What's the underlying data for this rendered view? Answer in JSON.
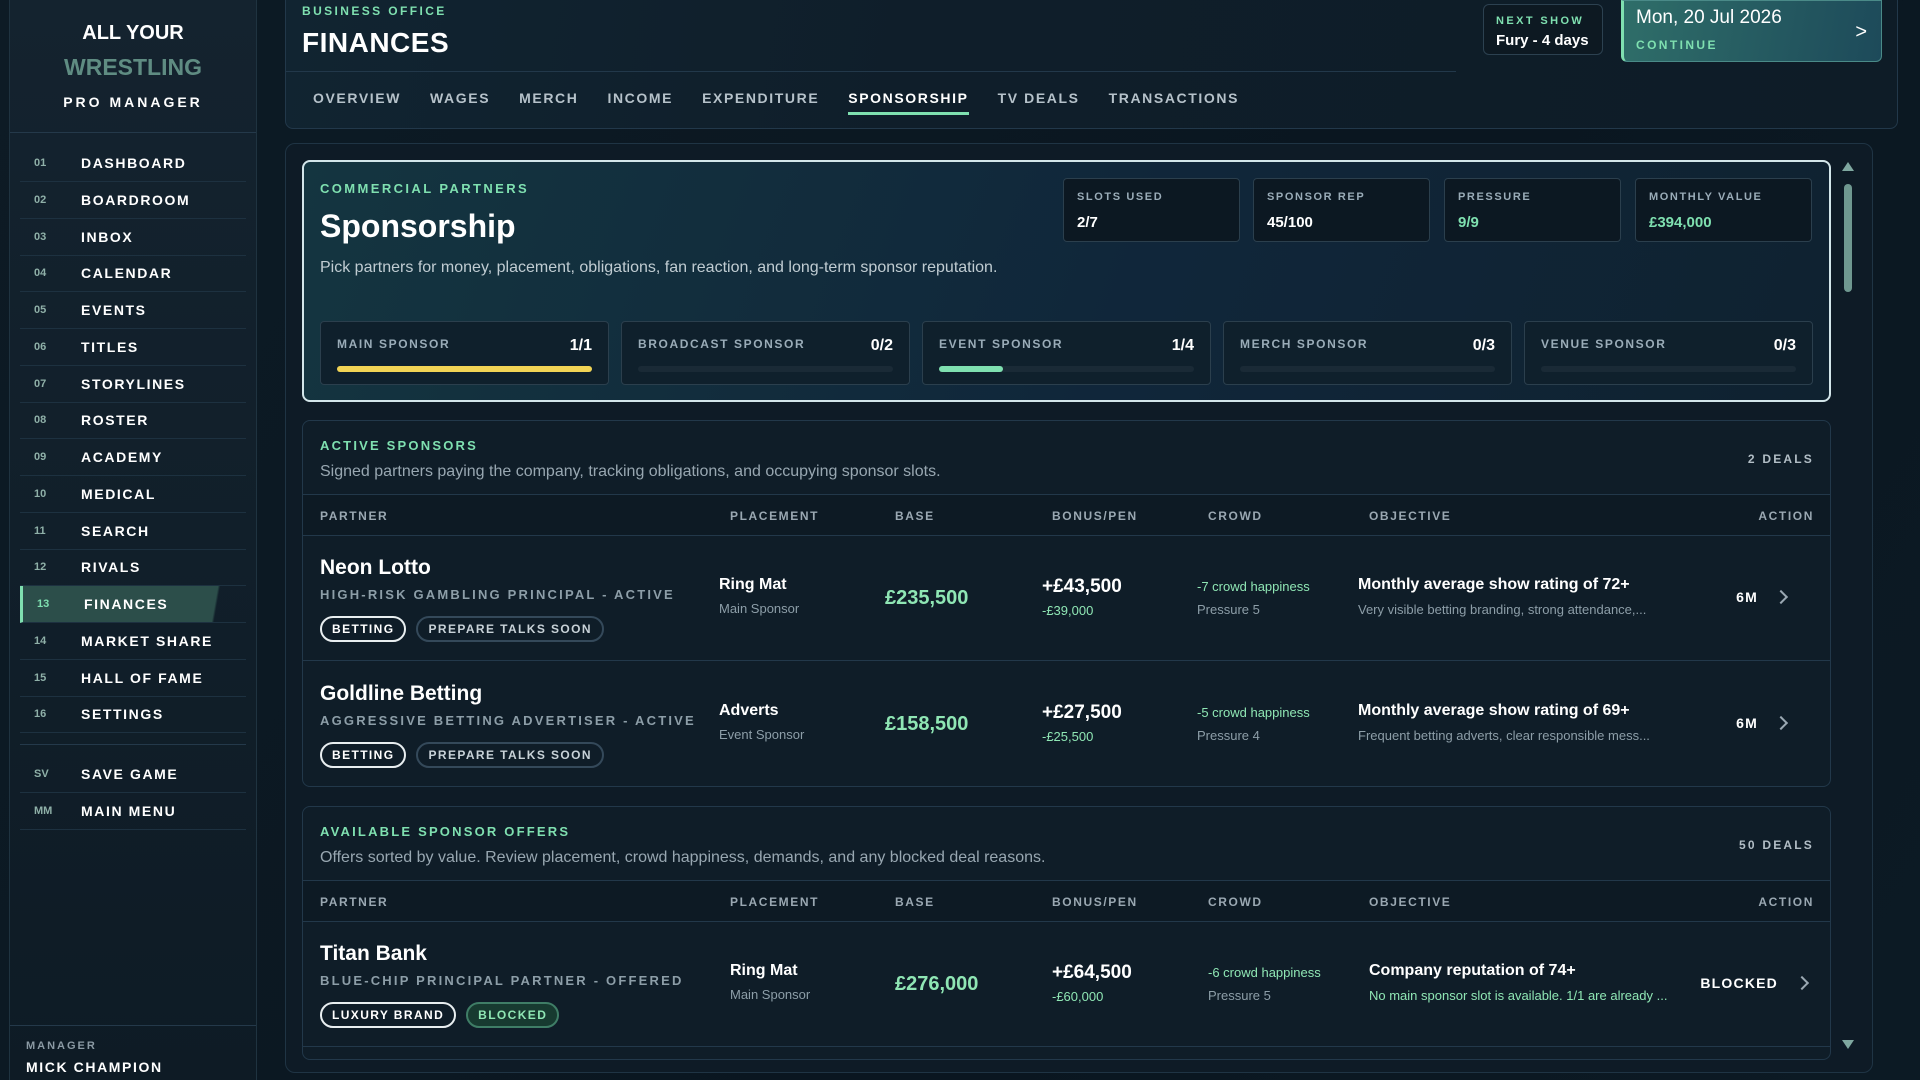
{
  "sidebar": {
    "logo": {
      "line1": "ALL YOUR",
      "line2": "WRESTLING",
      "line3": "PRO MANAGER"
    },
    "nav": [
      {
        "key": "01",
        "label": "DASHBOARD"
      },
      {
        "key": "02",
        "label": "BOARDROOM"
      },
      {
        "key": "03",
        "label": "INBOX"
      },
      {
        "key": "04",
        "label": "CALENDAR"
      },
      {
        "key": "05",
        "label": "EVENTS"
      },
      {
        "key": "06",
        "label": "TITLES"
      },
      {
        "key": "07",
        "label": "STORYLINES"
      },
      {
        "key": "08",
        "label": "ROSTER"
      },
      {
        "key": "09",
        "label": "ACADEMY"
      },
      {
        "key": "10",
        "label": "MEDICAL"
      },
      {
        "key": "11",
        "label": "SEARCH"
      },
      {
        "key": "12",
        "label": "RIVALS"
      },
      {
        "key": "13",
        "label": "FINANCES",
        "active": true
      },
      {
        "key": "14",
        "label": "MARKET SHARE"
      },
      {
        "key": "15",
        "label": "HALL OF FAME"
      },
      {
        "key": "16",
        "label": "SETTINGS"
      }
    ],
    "system": [
      {
        "key": "SV",
        "label": "SAVE GAME"
      },
      {
        "key": "MM",
        "label": "MAIN MENU"
      }
    ],
    "manager": {
      "label": "MANAGER",
      "name": "MICK CHAMPION"
    }
  },
  "header": {
    "eyebrow": "BUSINESS OFFICE",
    "title": "FINANCES",
    "tabs": [
      {
        "label": "OVERVIEW"
      },
      {
        "label": "WAGES"
      },
      {
        "label": "MERCH"
      },
      {
        "label": "INCOME"
      },
      {
        "label": "EXPENDITURE"
      },
      {
        "label": "SPONSORSHIP",
        "active": true
      },
      {
        "label": "TV DEALS"
      },
      {
        "label": "TRANSACTIONS"
      }
    ],
    "next_show": {
      "label": "NEXT SHOW",
      "value": "Fury - 4 days"
    },
    "date": {
      "value": "Mon, 20 Jul 2026",
      "action": "CONTINUE",
      "arrow": ">"
    }
  },
  "overview": {
    "eyebrow": "COMMERCIAL PARTNERS",
    "title": "Sponsorship",
    "description": "Pick partners for money, placement, obligations, fan reaction, and long-term sponsor reputation.",
    "stats": [
      {
        "label": "SLOTS USED",
        "value": "2/7"
      },
      {
        "label": "SPONSOR REP",
        "value": "45/100"
      },
      {
        "label": "PRESSURE",
        "value": "9/9"
      },
      {
        "label": "MONTHLY VALUE",
        "value": "£394,000"
      }
    ],
    "slots": [
      {
        "label": "MAIN SPONSOR",
        "value": "1/1"
      },
      {
        "label": "BROADCAST SPONSOR",
        "value": "0/2"
      },
      {
        "label": "EVENT SPONSOR",
        "value": "1/4"
      },
      {
        "label": "MERCH SPONSOR",
        "value": "0/3"
      },
      {
        "label": "VENUE SPONSOR",
        "value": "0/3"
      }
    ]
  },
  "active": {
    "title": "ACTIVE SPONSORS",
    "description": "Signed partners paying the company, tracking obligations, and occupying sponsor slots.",
    "count": "2 DEALS",
    "columns": [
      "PARTNER",
      "PLACEMENT",
      "BASE",
      "BONUS/PEN",
      "CROWD",
      "OBJECTIVE",
      "ACTION"
    ],
    "rows": [
      {
        "partner": "Neon Lotto",
        "subtitle": "HIGH-RISK GAMBLING PRINCIPAL - ACTIVE",
        "tags": [
          "BETTING",
          "PREPARE TALKS SOON"
        ],
        "placement": "Ring Mat",
        "placement_role": "Main Sponsor",
        "base": "£235,500",
        "bonus": "+£43,500",
        "penalty": "-£39,000",
        "crowd": "-7 crowd happiness",
        "pressure": "Pressure 5",
        "objective": "Monthly average show rating of 72+",
        "objective_detail": "Very visible betting branding, strong attendance,...",
        "action": "6M"
      },
      {
        "partner": "Goldline Betting",
        "subtitle": "AGGRESSIVE BETTING ADVERTISER - ACTIVE",
        "tags": [
          "BETTING",
          "PREPARE TALKS SOON"
        ],
        "placement": "Adverts",
        "placement_role": "Event Sponsor",
        "base": "£158,500",
        "bonus": "+£27,500",
        "penalty": "-£25,500",
        "crowd": "-5 crowd happiness",
        "pressure": "Pressure 4",
        "objective": "Monthly average show rating of 69+",
        "objective_detail": "Frequent betting adverts, clear responsible mess...",
        "action": "6M"
      }
    ]
  },
  "offers": {
    "title": "AVAILABLE SPONSOR OFFERS",
    "description": "Offers sorted by value. Review placement, crowd happiness, demands, and any blocked deal reasons.",
    "count": "50 DEALS",
    "columns": [
      "PARTNER",
      "PLACEMENT",
      "BASE",
      "BONUS/PEN",
      "CROWD",
      "OBJECTIVE",
      "ACTION"
    ],
    "rows": [
      {
        "partner": "Titan Bank",
        "subtitle": "BLUE-CHIP PRINCIPAL PARTNER - OFFERED",
        "tags": [
          "LUXURY BRAND",
          "BLOCKED"
        ],
        "placement": "Ring Mat",
        "placement_role": "Main Sponsor",
        "base": "£276,000",
        "bonus": "+£64,500",
        "penalty": "-£60,000",
        "crowd": "-6 crowd happiness",
        "pressure": "Pressure 5",
        "objective": "Company reputation of 74+",
        "objective_detail": "No main sponsor slot is available. 1/1 are already ...",
        "action": "BLOCKED"
      }
    ]
  }
}
